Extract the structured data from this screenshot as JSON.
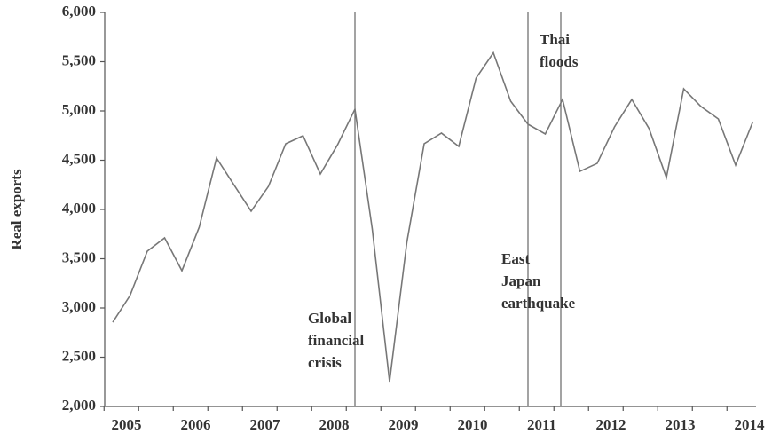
{
  "chart_data": {
    "type": "line",
    "y_label": "Real exports",
    "categories": [
      "2005",
      null,
      null,
      null,
      "2006",
      null,
      null,
      null,
      "2007",
      null,
      null,
      null,
      "2008",
      null,
      null,
      null,
      "2009",
      null,
      null,
      null,
      "2010",
      null,
      null,
      null,
      "2011",
      null,
      null,
      null,
      "2012",
      null,
      null,
      null,
      "2013",
      null,
      null,
      null,
      "2014",
      null
    ],
    "series": [
      {
        "name": "Real exports",
        "color": "#777777",
        "values": [
          2855,
          3126,
          3577,
          3712,
          3378,
          3820,
          4523,
          4252,
          3982,
          4234,
          4667,
          4748,
          4360,
          4658,
          5018,
          3802,
          2252,
          3667,
          4667,
          4775,
          4640,
          5333,
          5590,
          5099,
          4865,
          4766,
          5117,
          4387,
          4468,
          4838,
          5117,
          4820,
          4324,
          5225,
          5045,
          4919,
          4450,
          4892
        ]
      }
    ],
    "ylim": [
      2000,
      6000
    ],
    "yticks": [
      {
        "value": 2000,
        "label": "2,000"
      },
      {
        "value": 2500,
        "label": "2,500"
      },
      {
        "value": 3000,
        "label": "3,000"
      },
      {
        "value": 3500,
        "label": "3,500"
      },
      {
        "value": 4000,
        "label": "4,000"
      },
      {
        "value": 4500,
        "label": "4,500"
      },
      {
        "value": 5000,
        "label": "5,000"
      },
      {
        "value": 5500,
        "label": "5,500"
      },
      {
        "value": 6000,
        "label": "6,000"
      }
    ],
    "grid": false,
    "annotations": [
      {
        "lines": [
          "Global",
          "financial",
          "crisis"
        ]
      },
      {
        "lines": [
          "East",
          "Japan",
          "earthquake"
        ]
      },
      {
        "lines": [
          "Thai",
          "floods"
        ]
      }
    ]
  }
}
